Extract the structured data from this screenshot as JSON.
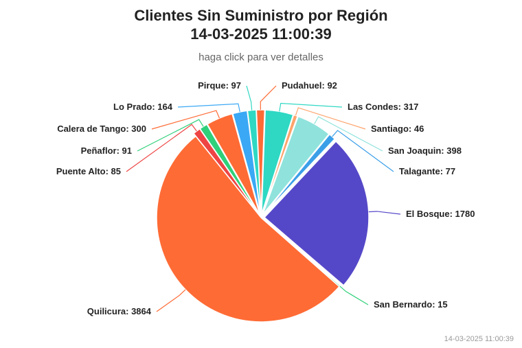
{
  "header": {
    "title_line1": "Clientes Sin Suministro por Región",
    "title_line2": "14-03-2025 11:00:39",
    "subtitle": "haga click para ver detalles"
  },
  "footer": {
    "timestamp": "14-03-2025 11:00:39"
  },
  "chart_data": {
    "type": "pie",
    "title": "Clientes Sin Suministro por Región",
    "subtitle": "haga click para ver detalles",
    "slices": [
      {
        "name": "Pudahuel",
        "value": 92,
        "color": "#ff6b35",
        "exploded": true
      },
      {
        "name": "Las Condes",
        "value": 317,
        "color": "#2ed8c3",
        "exploded": true
      },
      {
        "name": "Santiago",
        "value": 46,
        "color": "#ffa36b",
        "exploded": true
      },
      {
        "name": "San Joaquin",
        "value": 398,
        "color": "#8fe3dc",
        "exploded": true
      },
      {
        "name": "Talagante",
        "value": 77,
        "color": "#3b9fe8",
        "exploded": true
      },
      {
        "name": "El Bosque",
        "value": 1780,
        "color": "#5548c8",
        "exploded": true
      },
      {
        "name": "San Bernardo",
        "value": 15,
        "color": "#2fd07a",
        "exploded": false
      },
      {
        "name": "Quilicura",
        "value": 3864,
        "color": "#ff6b35",
        "exploded": false
      },
      {
        "name": "Puente Alto",
        "value": 85,
        "color": "#ee4444",
        "exploded": true
      },
      {
        "name": "Peñaflor",
        "value": 91,
        "color": "#2fd07a",
        "exploded": true
      },
      {
        "name": "Calera de Tango",
        "value": 300,
        "color": "#ff6b35",
        "exploded": true
      },
      {
        "name": "Lo Prado",
        "value": 164,
        "color": "#3aa8f5",
        "exploded": true
      },
      {
        "name": "Pirque",
        "value": 97,
        "color": "#2ed8c3",
        "exploded": true
      }
    ]
  }
}
